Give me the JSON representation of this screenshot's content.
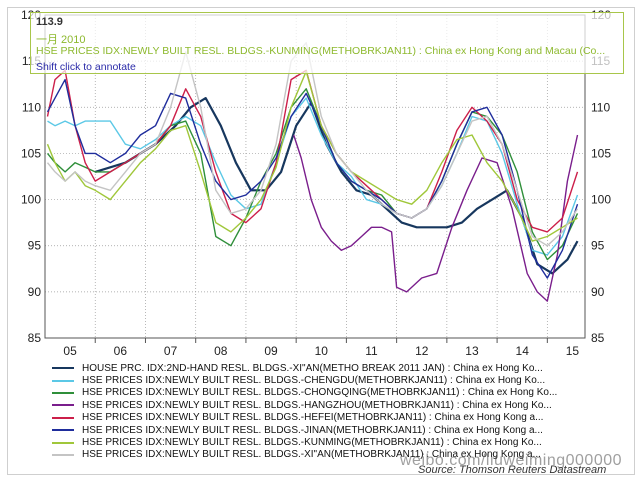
{
  "tooltip": {
    "value": "113.9",
    "date": "一月 2010",
    "series": "HSE PRICES IDX:NEWLY BUILT RESL. BLDGS.-KUNMING(METHOBRKJAN11) : China ex Hong Kong and Macau (Co...",
    "hint": "Shift click to annotate"
  },
  "watermark": "weibo.com/liuweiming000000",
  "source": "Source: Thomson Reuters Datastream",
  "colors": {
    "xian_2nd": "#17375e",
    "chengdu": "#5bc8e6",
    "chongqing": "#2f8f3a",
    "hangzhou": "#7a1e8c",
    "hefei": "#cc1f4a",
    "jinan": "#1f2d9c",
    "kunming": "#a0c73a",
    "xian_new": "#c4c4c4"
  },
  "chart_data": {
    "type": "line",
    "title": "",
    "xlabel": "",
    "ylabel": "",
    "x_tick_labels": [
      "05",
      "06",
      "07",
      "08",
      "09",
      "10",
      "11",
      "12",
      "13",
      "14",
      "15"
    ],
    "y_ticks": [
      85,
      90,
      95,
      100,
      105,
      110,
      115,
      120
    ],
    "ylim": [
      85,
      120
    ],
    "xlim": [
      2005.0,
      2015.75
    ],
    "grid": true,
    "legend_position": "bottom",
    "series": [
      {
        "name": "HOUSE PRC. IDX:2ND-HAND RESL. BLDGS.-XI\"AN(METHO BREAK 2011 JAN) : China ex Hong Ko...",
        "color_key": "xian_2nd",
        "x": [
          2006.0,
          2006.3,
          2006.6,
          2006.9,
          2007.2,
          2007.6,
          2007.9,
          2008.2,
          2008.5,
          2008.8,
          2009.1,
          2009.4,
          2009.7,
          2010.0,
          2010.3,
          2010.6,
          2010.9,
          2011.2,
          2011.5,
          2011.8,
          2012.1,
          2012.4,
          2012.7,
          2013.0,
          2013.3,
          2013.6,
          2013.9,
          2014.2,
          2014.5,
          2014.8,
          2015.1,
          2015.4,
          2015.6
        ],
        "y": [
          103,
          103.5,
          104,
          105,
          106,
          108,
          110,
          111,
          108,
          104,
          101,
          101,
          103,
          108,
          110.5,
          106,
          103,
          101,
          100.5,
          99,
          97.5,
          97,
          97,
          97,
          97.5,
          99,
          100,
          101,
          98,
          93,
          92,
          93.5,
          95.5
        ]
      },
      {
        "name": "HSE PRICES IDX:NEWLY BUILT RESL. BLDGS.-CHENGDU(METHOBRKJAN11) : China ex Hong Ko...",
        "color_key": "chengdu",
        "x": [
          2005.05,
          2005.2,
          2005.4,
          2005.6,
          2005.8,
          2006.0,
          2006.3,
          2006.6,
          2006.9,
          2007.2,
          2007.5,
          2007.8,
          2008.1,
          2008.4,
          2008.7,
          2009.0,
          2009.3,
          2009.6,
          2009.9,
          2010.2,
          2010.5,
          2010.8,
          2011.1,
          2011.4,
          2011.7,
          2012.0,
          2012.3,
          2012.6,
          2012.9,
          2013.2,
          2013.5,
          2013.8,
          2014.1,
          2014.4,
          2014.7,
          2015.0,
          2015.3,
          2015.6
        ],
        "y": [
          108.5,
          108,
          108.5,
          108,
          108.5,
          108.5,
          108.5,
          106,
          105.5,
          106.5,
          108,
          109,
          108,
          104,
          100.5,
          99,
          99.5,
          104,
          109,
          111,
          107,
          104,
          102.5,
          100,
          99.5,
          98.5,
          98,
          99,
          101.5,
          105,
          109,
          108.5,
          105,
          99.5,
          94.5,
          94,
          96,
          100.5
        ]
      },
      {
        "name": "HSE PRICES IDX:NEWLY BUILT RESL. BLDGS.-CHONGQING(METHOBRKJAN11) : China ex Hong Ko...",
        "color_key": "chongqing",
        "x": [
          2005.05,
          2005.2,
          2005.4,
          2005.6,
          2005.8,
          2006.0,
          2006.3,
          2006.6,
          2006.9,
          2007.2,
          2007.5,
          2007.8,
          2008.1,
          2008.4,
          2008.7,
          2009.0,
          2009.3,
          2009.6,
          2009.9,
          2010.2,
          2010.5,
          2010.8,
          2011.1,
          2011.4,
          2011.7,
          2012.0,
          2012.3,
          2012.6,
          2012.9,
          2013.2,
          2013.5,
          2013.8,
          2014.1,
          2014.4,
          2014.7,
          2015.0,
          2015.3,
          2015.6
        ],
        "y": [
          105,
          104,
          103,
          104,
          103.5,
          103,
          103,
          104,
          105,
          106,
          108,
          108.5,
          105,
          96,
          95,
          98,
          102,
          105,
          110,
          112,
          108,
          104,
          102,
          101,
          100.5,
          98.5,
          98,
          99,
          102,
          106,
          109.5,
          109,
          107,
          103,
          96.5,
          93.5,
          95,
          98.5
        ]
      },
      {
        "name": "HSE PRICES IDX:NEWLY BUILT RESL. BLDGS.-HANGZHOU(METHOBRKJAN11) : China ex Hong Ko...",
        "color_key": "hangzhou",
        "x": [
          2009.95,
          2010.1,
          2010.3,
          2010.5,
          2010.7,
          2010.9,
          2011.1,
          2011.3,
          2011.5,
          2011.7,
          2011.9,
          2012.0,
          2012.2,
          2012.5,
          2012.8,
          2013.1,
          2013.4,
          2013.7,
          2014.0,
          2014.3,
          2014.6,
          2014.8,
          2015.0,
          2015.2,
          2015.4,
          2015.6
        ],
        "y": [
          107,
          104.5,
          100,
          97,
          95.5,
          94.5,
          95,
          96,
          97,
          97,
          96.5,
          90.5,
          90,
          91.5,
          92,
          97,
          101,
          104.5,
          104,
          99,
          92,
          90,
          89,
          94,
          102,
          107
        ]
      },
      {
        "name": "HSE PRICES IDX:NEWLY BUILT RESL. BLDGS.-HEFEI(METHOBRKJAN11) : China ex Hong Kong a...",
        "color_key": "hefei",
        "x": [
          2005.05,
          2005.2,
          2005.4,
          2005.6,
          2005.8,
          2006.0,
          2006.3,
          2006.6,
          2006.9,
          2007.2,
          2007.5,
          2007.8,
          2008.1,
          2008.4,
          2008.7,
          2009.0,
          2009.3,
          2009.6,
          2009.9,
          2010.2,
          2010.5,
          2010.8,
          2011.1,
          2011.4,
          2011.7,
          2012.0,
          2012.3,
          2012.6,
          2012.9,
          2013.2,
          2013.5,
          2013.8,
          2014.1,
          2014.4,
          2014.7,
          2015.0,
          2015.3,
          2015.6
        ],
        "y": [
          109,
          113,
          114,
          108,
          104,
          102,
          103,
          104,
          105,
          106,
          108,
          112,
          109,
          103,
          98.5,
          97.5,
          99,
          104,
          113,
          114,
          108,
          105,
          103,
          101.5,
          100,
          98.5,
          98,
          99,
          103,
          107.5,
          110,
          108.5,
          106,
          100,
          97,
          96.5,
          98,
          103
        ]
      },
      {
        "name": "HSE PRICES IDX:NEWLY BUILT RESL. BLDGS.-JINAN(METHOBRKJAN11) : China ex Hong Kong a...",
        "color_key": "jinan",
        "x": [
          2005.05,
          2005.2,
          2005.4,
          2005.6,
          2005.8,
          2006.0,
          2006.3,
          2006.6,
          2006.9,
          2007.2,
          2007.5,
          2007.8,
          2008.1,
          2008.4,
          2008.7,
          2009.0,
          2009.3,
          2009.6,
          2009.9,
          2010.2,
          2010.5,
          2010.8,
          2011.1,
          2011.4,
          2011.7,
          2012.0,
          2012.3,
          2012.6,
          2012.9,
          2013.2,
          2013.5,
          2013.8,
          2014.1,
          2014.4,
          2014.7,
          2015.0,
          2015.3,
          2015.6
        ],
        "y": [
          109.5,
          111,
          113,
          108,
          105,
          105,
          104,
          105,
          107,
          108,
          111.5,
          111,
          106,
          102,
          100,
          100.5,
          102,
          104.5,
          109,
          111.5,
          108,
          104,
          102,
          101,
          100,
          98.5,
          98,
          99,
          102,
          106,
          109.5,
          110,
          107,
          101,
          94,
          91.5,
          94.5,
          99.5
        ]
      },
      {
        "name": "HSE PRICES IDX:NEWLY BUILT RESL. BLDGS.-KUNMING(METHOBRKJAN11) : China ex Hong Ko...",
        "color_key": "kunming",
        "x": [
          2005.05,
          2005.2,
          2005.4,
          2005.6,
          2005.8,
          2006.0,
          2006.3,
          2006.6,
          2006.9,
          2007.2,
          2007.5,
          2007.8,
          2008.1,
          2008.4,
          2008.7,
          2009.0,
          2009.3,
          2009.6,
          2009.9,
          2010.2,
          2010.5,
          2010.8,
          2011.1,
          2011.4,
          2011.7,
          2012.0,
          2012.3,
          2012.6,
          2012.9,
          2013.2,
          2013.5,
          2013.8,
          2014.1,
          2014.4,
          2014.7,
          2015.0,
          2015.3,
          2015.6
        ],
        "y": [
          106,
          104,
          102,
          103,
          101.5,
          101,
          100,
          102,
          104,
          105.5,
          107.5,
          108,
          103,
          97.5,
          96.5,
          98,
          100,
          103.5,
          110,
          113.9,
          108,
          105,
          103,
          102,
          101,
          100,
          99.5,
          101,
          104,
          106.5,
          107,
          104,
          102,
          99,
          95.5,
          96,
          97,
          98
        ]
      },
      {
        "name": "HSE PRICES IDX:NEWLY BUILT RESL. BLDGS.-XI\"AN(METHOBRKJAN11) : China ex Hong Kong a...",
        "color_key": "xian_new",
        "x": [
          2005.05,
          2005.2,
          2005.4,
          2005.6,
          2005.8,
          2006.0,
          2006.3,
          2006.6,
          2006.9,
          2007.2,
          2007.5,
          2007.8,
          2008.1,
          2008.4,
          2008.7,
          2009.0,
          2009.3,
          2009.6,
          2009.9,
          2010.2,
          2010.5,
          2010.8,
          2011.1,
          2011.4,
          2011.7,
          2012.0,
          2012.3,
          2012.6,
          2012.9,
          2013.2,
          2013.5,
          2013.8,
          2014.1,
          2014.4,
          2014.7,
          2015.0,
          2015.3,
          2015.6
        ],
        "y": [
          104,
          103,
          102,
          103,
          102,
          101.5,
          101,
          103,
          105,
          106,
          110,
          116,
          110,
          101,
          98.5,
          99,
          101,
          106,
          115,
          117,
          109,
          105,
          103,
          101,
          99.5,
          98.5,
          98,
          99,
          101.5,
          105,
          108.5,
          109,
          106,
          101,
          96,
          95,
          96.5,
          99
        ]
      }
    ]
  }
}
